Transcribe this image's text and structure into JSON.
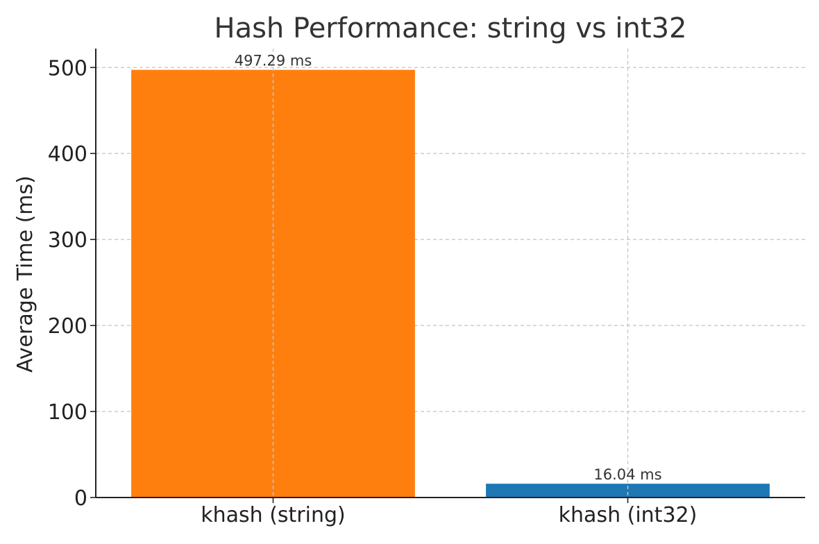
{
  "chart_data": {
    "type": "bar",
    "title": "Hash Performance: string vs int32",
    "xlabel": "",
    "ylabel": "Average Time (ms)",
    "categories": [
      "khash (string)",
      "khash (int32)"
    ],
    "values": [
      497.29,
      16.04
    ],
    "value_labels": [
      "497.29 ms",
      "16.04 ms"
    ],
    "colors": [
      "#ff7f0e",
      "#1f77b4"
    ],
    "ylim": [
      0,
      522
    ],
    "yticks": [
      0,
      100,
      200,
      300,
      400,
      500
    ],
    "grid": true
  }
}
